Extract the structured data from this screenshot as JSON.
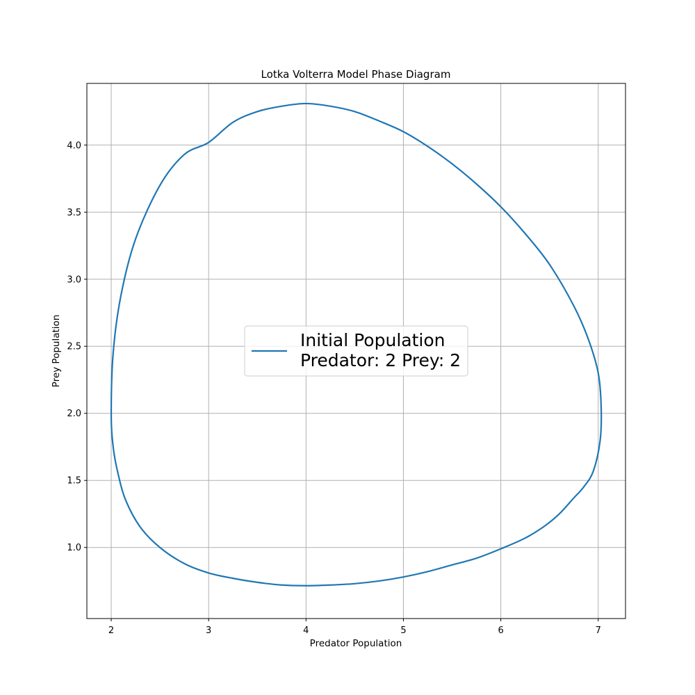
{
  "chart_data": {
    "type": "line",
    "title": "Lotka Volterra Model Phase Diagram",
    "xlabel": "Predator Population",
    "ylabel": "Prey Population",
    "xlim": [
      1.75,
      7.28
    ],
    "ylim": [
      0.47,
      4.46
    ],
    "xticks": [
      2,
      3,
      4,
      5,
      6,
      7
    ],
    "xtick_labels": [
      "2",
      "3",
      "4",
      "5",
      "6",
      "7"
    ],
    "yticks": [
      1.0,
      1.5,
      2.0,
      2.5,
      3.0,
      3.5,
      4.0
    ],
    "ytick_labels": [
      "1.0",
      "1.5",
      "2.0",
      "2.5",
      "3.0",
      "3.5",
      "4.0"
    ],
    "grid": true,
    "legend_position": "center",
    "colors": {
      "series": "#1f77b4",
      "grid": "#b0b0b0",
      "axes": "#000000"
    },
    "series": [
      {
        "legend_lines": [
          "Initial Population",
          "Predator: 2 Prey: 2"
        ],
        "x": [
          2.0,
          2.02,
          2.1,
          2.25,
          2.5,
          2.75,
          3.0,
          3.25,
          3.5,
          3.75,
          4.0,
          4.25,
          4.5,
          4.75,
          5.0,
          5.25,
          5.5,
          5.75,
          6.0,
          6.25,
          6.5,
          6.75,
          6.9,
          7.0,
          7.03,
          7.02,
          6.95,
          6.85,
          6.75,
          6.6,
          6.45,
          6.25,
          6.0,
          5.75,
          5.5,
          5.25,
          5.0,
          4.75,
          4.5,
          4.25,
          4.0,
          3.75,
          3.5,
          3.25,
          3.0,
          2.75,
          2.5,
          2.3,
          2.15,
          2.07,
          2.02,
          2.0
        ],
        "y": [
          2.0,
          2.45,
          2.88,
          3.3,
          3.7,
          3.93,
          4.02,
          4.17,
          4.25,
          4.29,
          4.31,
          4.29,
          4.25,
          4.18,
          4.1,
          3.99,
          3.86,
          3.71,
          3.54,
          3.34,
          3.11,
          2.8,
          2.55,
          2.3,
          2.05,
          1.8,
          1.57,
          1.45,
          1.37,
          1.25,
          1.16,
          1.07,
          0.99,
          0.92,
          0.87,
          0.82,
          0.78,
          0.75,
          0.73,
          0.72,
          0.715,
          0.72,
          0.74,
          0.77,
          0.81,
          0.88,
          1.0,
          1.15,
          1.35,
          1.55,
          1.75,
          2.0
        ]
      }
    ]
  }
}
